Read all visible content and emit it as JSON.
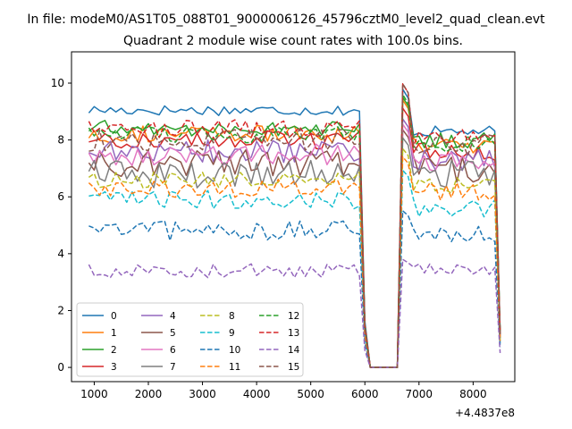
{
  "figure": {
    "suptitle": "In file: modeM0/AS1T05_088T01_9000006126_45796cztM0_level2_quad_clean.evt",
    "title": "Quadrant 2 module wise count rates with 100.0s bins.",
    "offset_label": "+4.4837e8"
  },
  "chart_data": {
    "type": "line",
    "title": "Quadrant 2 module wise count rates with 100.0s bins.",
    "xlabel": "",
    "ylabel": "",
    "x_offset": 448370000,
    "xlim": [
      580,
      8770
    ],
    "ylim": [
      -0.5,
      11.1
    ],
    "xticks": [
      1000,
      2000,
      3000,
      4000,
      5000,
      6000,
      7000,
      8000
    ],
    "yticks": [
      0,
      2,
      4,
      6,
      8,
      10
    ],
    "grid": false,
    "legend": {
      "placement": "lower-left",
      "columns": 4
    },
    "x_start": 900,
    "x_step": 100,
    "n_points": 77,
    "dip": {
      "x_start": 5950,
      "x_end": 6750,
      "low_value": 0.0,
      "peak_x": 6750
    },
    "series": [
      {
        "name": "0",
        "style": "solid",
        "color": "#1f77b4",
        "level": 9.05,
        "noise": 0.12,
        "after_level": 8.3,
        "peak": 10.3
      },
      {
        "name": "1",
        "style": "solid",
        "color": "#ff7f0e",
        "level": 8.2,
        "noise": 0.2,
        "after_level": 7.8,
        "peak": 9.9
      },
      {
        "name": "2",
        "style": "solid",
        "color": "#2ca02c",
        "level": 8.4,
        "noise": 0.18,
        "after_level": 8.0,
        "peak": 10.0
      },
      {
        "name": "3",
        "style": "solid",
        "color": "#d62728",
        "level": 8.0,
        "noise": 0.2,
        "after_level": 7.6,
        "peak": 9.6
      },
      {
        "name": "4",
        "style": "solid",
        "color": "#9467bd",
        "level": 7.6,
        "noise": 0.25,
        "after_level": 7.3,
        "peak": 9.2
      },
      {
        "name": "5",
        "style": "solid",
        "color": "#8c564b",
        "level": 7.2,
        "noise": 0.3,
        "after_level": 7.0,
        "peak": 8.8
      },
      {
        "name": "6",
        "style": "solid",
        "color": "#e377c2",
        "level": 7.5,
        "noise": 0.25,
        "after_level": 7.2,
        "peak": 9.0
      },
      {
        "name": "7",
        "style": "solid",
        "color": "#7f7f7f",
        "level": 6.8,
        "noise": 0.3,
        "after_level": 6.8,
        "peak": 8.5
      },
      {
        "name": "8",
        "style": "dashed",
        "color": "#bcbd22",
        "level": 6.6,
        "noise": 0.18,
        "after_level": 6.4,
        "peak": 8.1
      },
      {
        "name": "9",
        "style": "dashed",
        "color": "#17becf",
        "level": 5.9,
        "noise": 0.2,
        "after_level": 5.6,
        "peak": 7.3
      },
      {
        "name": "10",
        "style": "dashed",
        "color": "#1f77b4",
        "level": 4.8,
        "noise": 0.22,
        "after_level": 4.7,
        "peak": 5.8
      },
      {
        "name": "11",
        "style": "dashed",
        "color": "#ff7f0e",
        "level": 6.3,
        "noise": 0.2,
        "after_level": 6.2,
        "peak": 7.8
      },
      {
        "name": "12",
        "style": "dashed",
        "color": "#2ca02c",
        "level": 8.2,
        "noise": 0.2,
        "after_level": 7.9,
        "peak": 10.1
      },
      {
        "name": "13",
        "style": "dashed",
        "color": "#d62728",
        "level": 8.4,
        "noise": 0.2,
        "after_level": 8.1,
        "peak": 10.5
      },
      {
        "name": "14",
        "style": "dashed",
        "color": "#9467bd",
        "level": 3.4,
        "noise": 0.15,
        "after_level": 3.4,
        "peak": 4.0
      },
      {
        "name": "15",
        "style": "dashed",
        "color": "#8c564b",
        "level": 8.0,
        "noise": 0.25,
        "after_level": 7.8,
        "peak": 10.5
      }
    ]
  }
}
